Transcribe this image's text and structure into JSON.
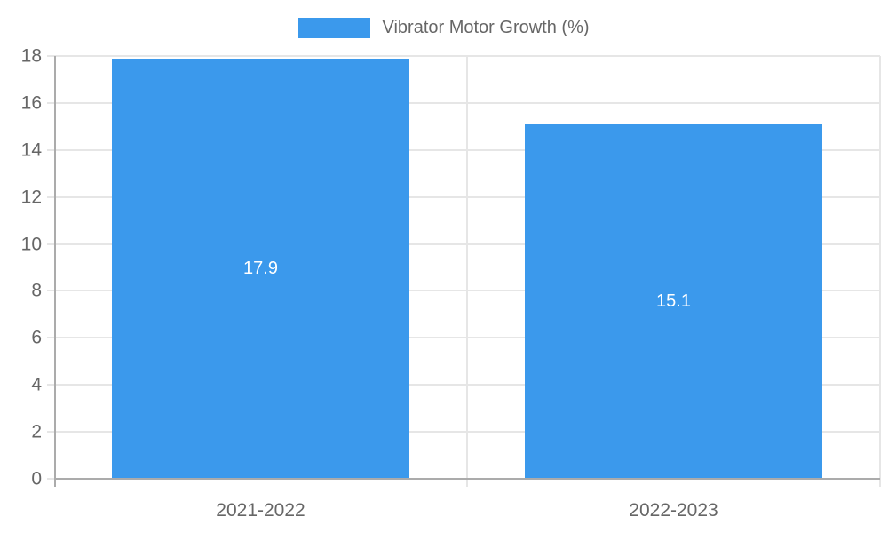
{
  "chart_data": {
    "type": "bar",
    "series_label": "Vibrator Motor Growth (%)",
    "categories": [
      "2021-2022",
      "2022-2023"
    ],
    "values": [
      17.9,
      15.1
    ],
    "data_labels": [
      "17.9",
      "15.1"
    ],
    "ylim": [
      0,
      18
    ],
    "yticks": [
      0,
      2,
      4,
      6,
      8,
      10,
      12,
      14,
      16,
      18
    ],
    "grid": true,
    "legend_position": "top",
    "colors": {
      "bar": "#3B99EC",
      "grid": "#E6E6E6",
      "axis": "#ABABAB",
      "tick_text": "#666666",
      "data_label_text": "#FFFFFF"
    }
  }
}
